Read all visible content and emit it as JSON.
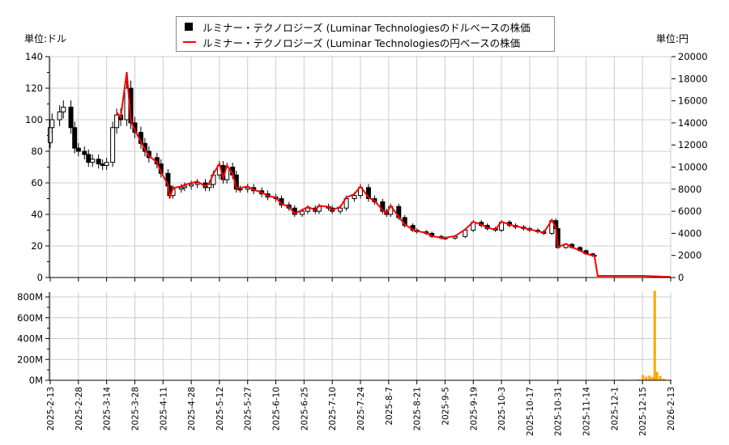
{
  "legend": {
    "usd": "ルミナー・テクノロジーズ (Luminar Technologiesのドルベースの株価",
    "yen": "ルミナー・テクノロジーズ (Luminar Technologiesの円ベースの株価"
  },
  "units": {
    "left": "単位:ドル",
    "right": "単位:円"
  },
  "colors": {
    "candle": "#000000",
    "yen_line": "#ff0000",
    "volume": "#ffa500",
    "grid": "#cccccc"
  },
  "chart_data": [
    {
      "type": "candlestick+line",
      "ylim_usd": [
        0,
        140
      ],
      "ylim_yen": [
        0,
        20000
      ],
      "yticks_usd": [
        "0",
        "20",
        "40",
        "60",
        "80",
        "100",
        "120",
        "140"
      ],
      "yticks_yen": [
        "0",
        "2000",
        "4000",
        "6000",
        "8000",
        "10000",
        "12000",
        "14000",
        "16000",
        "18000",
        "20000"
      ],
      "xticks": [
        "2025-2-13",
        "2025-2-28",
        "2025-3-14",
        "2025-3-28",
        "2025-4-11",
        "2025-4-28",
        "2025-5-12",
        "2025-5-27",
        "2025-6-10",
        "2025-6-25",
        "2025-7-10",
        "2025-7-24",
        "2025-8-7",
        "2025-8-21",
        "2025-9-5",
        "2025-9-19",
        "2025-10-3",
        "2025-10-17",
        "2025-10-31",
        "2025-11-14",
        "2025-12-1",
        "2025-12-15",
        "2026-2-13"
      ],
      "grid": true,
      "legend_position": "top",
      "series_columns": [
        "date",
        "usd_close",
        "yen_close"
      ],
      "points": [
        [
          "2025-2-13",
          95,
          null
        ],
        [
          "2025-2-14",
          100,
          null
        ],
        [
          "2025-2-18",
          105,
          null
        ],
        [
          "2025-2-20",
          108,
          null
        ],
        [
          "2025-2-24",
          95,
          null
        ],
        [
          "2025-2-26",
          82,
          null
        ],
        [
          "2025-2-28",
          80,
          null
        ],
        [
          "2025-3-3",
          78,
          null
        ],
        [
          "2025-3-5",
          73,
          null
        ],
        [
          "2025-3-7",
          75,
          null
        ],
        [
          "2025-3-10",
          72,
          null
        ],
        [
          "2025-3-12",
          71,
          null
        ],
        [
          "2025-3-14",
          73,
          null
        ],
        [
          "2025-3-17",
          95,
          null
        ],
        [
          "2025-3-19",
          103,
          14950
        ],
        [
          "2025-3-21",
          100,
          14500
        ],
        [
          "2025-3-24",
          120,
          18600
        ],
        [
          "2025-3-26",
          98,
          14200
        ],
        [
          "2025-3-28",
          92,
          13350
        ],
        [
          "2025-3-31",
          85,
          12300
        ],
        [
          "2025-4-2",
          80,
          11600
        ],
        [
          "2025-4-4",
          76,
          11000
        ],
        [
          "2025-4-8",
          72,
          10450
        ],
        [
          "2025-4-10",
          66,
          9550
        ],
        [
          "2025-4-14",
          58,
          8400
        ],
        [
          "2025-4-15",
          52,
          7200
        ],
        [
          "2025-4-17",
          56,
          8100
        ],
        [
          "2025-4-22",
          57,
          8250
        ],
        [
          "2025-4-24",
          58,
          8400
        ],
        [
          "2025-4-28",
          59,
          8550
        ],
        [
          "2025-5-1",
          60,
          8700
        ],
        [
          "2025-5-5",
          57,
          8250
        ],
        [
          "2025-5-7",
          59,
          8550
        ],
        [
          "2025-5-9",
          65,
          9400
        ],
        [
          "2025-5-12",
          71,
          10300
        ],
        [
          "2025-5-14",
          62,
          9000
        ],
        [
          "2025-5-16",
          70,
          10150
        ],
        [
          "2025-5-19",
          65,
          9400
        ],
        [
          "2025-5-21",
          56,
          8100
        ],
        [
          "2025-5-23",
          56,
          8100
        ],
        [
          "2025-5-27",
          57,
          8250
        ],
        [
          "2025-5-30",
          55,
          7950
        ],
        [
          "2025-6-3",
          53,
          7700
        ],
        [
          "2025-6-6",
          51,
          7400
        ],
        [
          "2025-6-10",
          50,
          7250
        ],
        [
          "2025-6-13",
          46,
          6650
        ],
        [
          "2025-6-17",
          44,
          6400
        ],
        [
          "2025-6-20",
          40,
          5800
        ],
        [
          "2025-6-24",
          42,
          6100
        ],
        [
          "2025-6-27",
          44,
          6400
        ],
        [
          "2025-7-1",
          42,
          6100
        ],
        [
          "2025-7-3",
          45,
          6500
        ],
        [
          "2025-7-8",
          44,
          6400
        ],
        [
          "2025-7-10",
          42,
          6100
        ],
        [
          "2025-7-14",
          44,
          6400
        ],
        [
          "2025-7-17",
          50,
          7250
        ],
        [
          "2025-7-21",
          52,
          7550
        ],
        [
          "2025-7-24",
          57,
          8250
        ],
        [
          "2025-7-28",
          50,
          7250
        ],
        [
          "2025-7-31",
          48,
          6950
        ],
        [
          "2025-8-4",
          42,
          6100
        ],
        [
          "2025-8-6",
          40,
          5800
        ],
        [
          "2025-8-8",
          45,
          6500
        ],
        [
          "2025-8-12",
          38,
          5500
        ],
        [
          "2025-8-15",
          33,
          4800
        ],
        [
          "2025-8-19",
          30,
          4350
        ],
        [
          "2025-8-21",
          29,
          4200
        ],
        [
          "2025-8-26",
          28,
          4050
        ],
        [
          "2025-8-29",
          26,
          3750
        ],
        [
          "2025-9-3",
          25,
          3600
        ],
        [
          "2025-9-5",
          25,
          3600
        ],
        [
          "2025-9-10",
          26,
          3750
        ],
        [
          "2025-9-15",
          30,
          4350
        ],
        [
          "2025-9-19",
          35,
          5050
        ],
        [
          "2025-9-23",
          33,
          4800
        ],
        [
          "2025-9-26",
          31,
          4500
        ],
        [
          "2025-9-30",
          30,
          4350
        ],
        [
          "2025-10-3",
          35,
          5050
        ],
        [
          "2025-10-7",
          33,
          4800
        ],
        [
          "2025-10-10",
          32,
          4650
        ],
        [
          "2025-10-14",
          31,
          4500
        ],
        [
          "2025-10-17",
          30,
          4350
        ],
        [
          "2025-10-21",
          29,
          4200
        ],
        [
          "2025-10-24",
          28,
          4050
        ],
        [
          "2025-10-28",
          36,
          5200
        ],
        [
          "2025-10-30",
          31,
          4500
        ],
        [
          "2025-10-31",
          19,
          2750
        ],
        [
          "2025-11-4",
          21,
          3050
        ],
        [
          "2025-11-7",
          19,
          2750
        ],
        [
          "2025-11-11",
          17,
          2450
        ],
        [
          "2025-11-14",
          15,
          2150
        ],
        [
          "2025-11-18",
          14,
          2000
        ],
        [
          "2025-11-19",
          14,
          2000
        ],
        [
          "2025-11-21",
          null,
          150
        ],
        [
          "2025-12-15",
          null,
          150
        ],
        [
          "2026-2-13",
          null,
          60
        ]
      ]
    },
    {
      "type": "bar",
      "ylim": [
        0,
        800000000
      ],
      "yticks": [
        "0M",
        "200M",
        "400M",
        "600M",
        "800M"
      ],
      "series_columns": [
        "date",
        "volume"
      ],
      "points": [
        [
          "2025-11-12",
          5000000
        ],
        [
          "2025-11-24",
          3000000
        ],
        [
          "2025-11-26",
          3000000
        ],
        [
          "2025-12-5",
          6000000
        ],
        [
          "2025-12-8",
          4000000
        ],
        [
          "2025-12-10",
          4000000
        ],
        [
          "2025-12-13",
          8000000
        ],
        [
          "2025-12-15",
          10000000
        ],
        [
          "2025-12-16",
          50000000
        ],
        [
          "2025-12-23",
          35000000
        ],
        [
          "2025-12-30",
          45000000
        ],
        [
          "2026-1-5",
          30000000
        ],
        [
          "2026-1-10",
          860000000
        ],
        [
          "2026-1-15",
          80000000
        ],
        [
          "2026-1-22",
          40000000
        ],
        [
          "2026-1-29",
          15000000
        ]
      ]
    }
  ]
}
